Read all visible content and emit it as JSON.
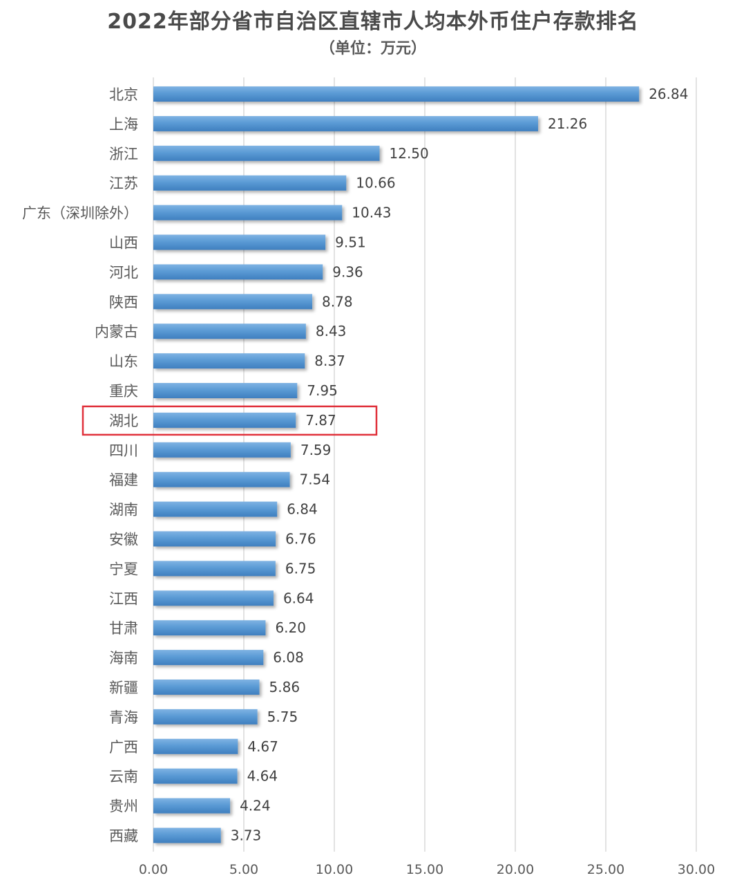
{
  "chart_data": {
    "type": "bar",
    "orientation": "horizontal",
    "title": "2022年部分省市自治区直辖市人均本外币住户存款排名",
    "subtitle": "（单位：万元）",
    "xlabel": "",
    "ylabel": "",
    "xlim": [
      0,
      30
    ],
    "ticks": [
      "0.00",
      "5.00",
      "10.00",
      "15.00",
      "20.00",
      "25.00",
      "30.00"
    ],
    "tick_values": [
      0,
      5,
      10,
      15,
      20,
      25,
      30
    ],
    "grid": true,
    "legend": "none",
    "bar_color": "#5b9bd5",
    "highlight_color": "#e0303a",
    "highlight_category": "湖北",
    "categories": [
      "北京",
      "上海",
      "浙江",
      "江苏",
      "广东（深圳除外）",
      "山西",
      "河北",
      "陕西",
      "内蒙古",
      "山东",
      "重庆",
      "湖北",
      "四川",
      "福建",
      "湖南",
      "安徽",
      "宁夏",
      "江西",
      "甘肃",
      "海南",
      "新疆",
      "青海",
      "广西",
      "云南",
      "贵州",
      "西藏"
    ],
    "values": [
      26.84,
      21.26,
      12.5,
      10.66,
      10.43,
      9.51,
      9.36,
      8.78,
      8.43,
      8.37,
      7.95,
      7.87,
      7.59,
      7.54,
      6.84,
      6.76,
      6.75,
      6.64,
      6.2,
      6.08,
      5.86,
      5.75,
      4.67,
      4.64,
      4.24,
      3.73
    ],
    "value_labels": [
      "26.84",
      "21.26",
      "12.50",
      "10.66",
      "10.43",
      "9.51",
      "9.36",
      "8.78",
      "8.43",
      "8.37",
      "7.95",
      "7.87",
      "7.59",
      "7.54",
      "6.84",
      "6.76",
      "6.75",
      "6.64",
      "6.20",
      "6.08",
      "5.86",
      "5.75",
      "4.67",
      "4.64",
      "4.24",
      "3.73"
    ]
  }
}
